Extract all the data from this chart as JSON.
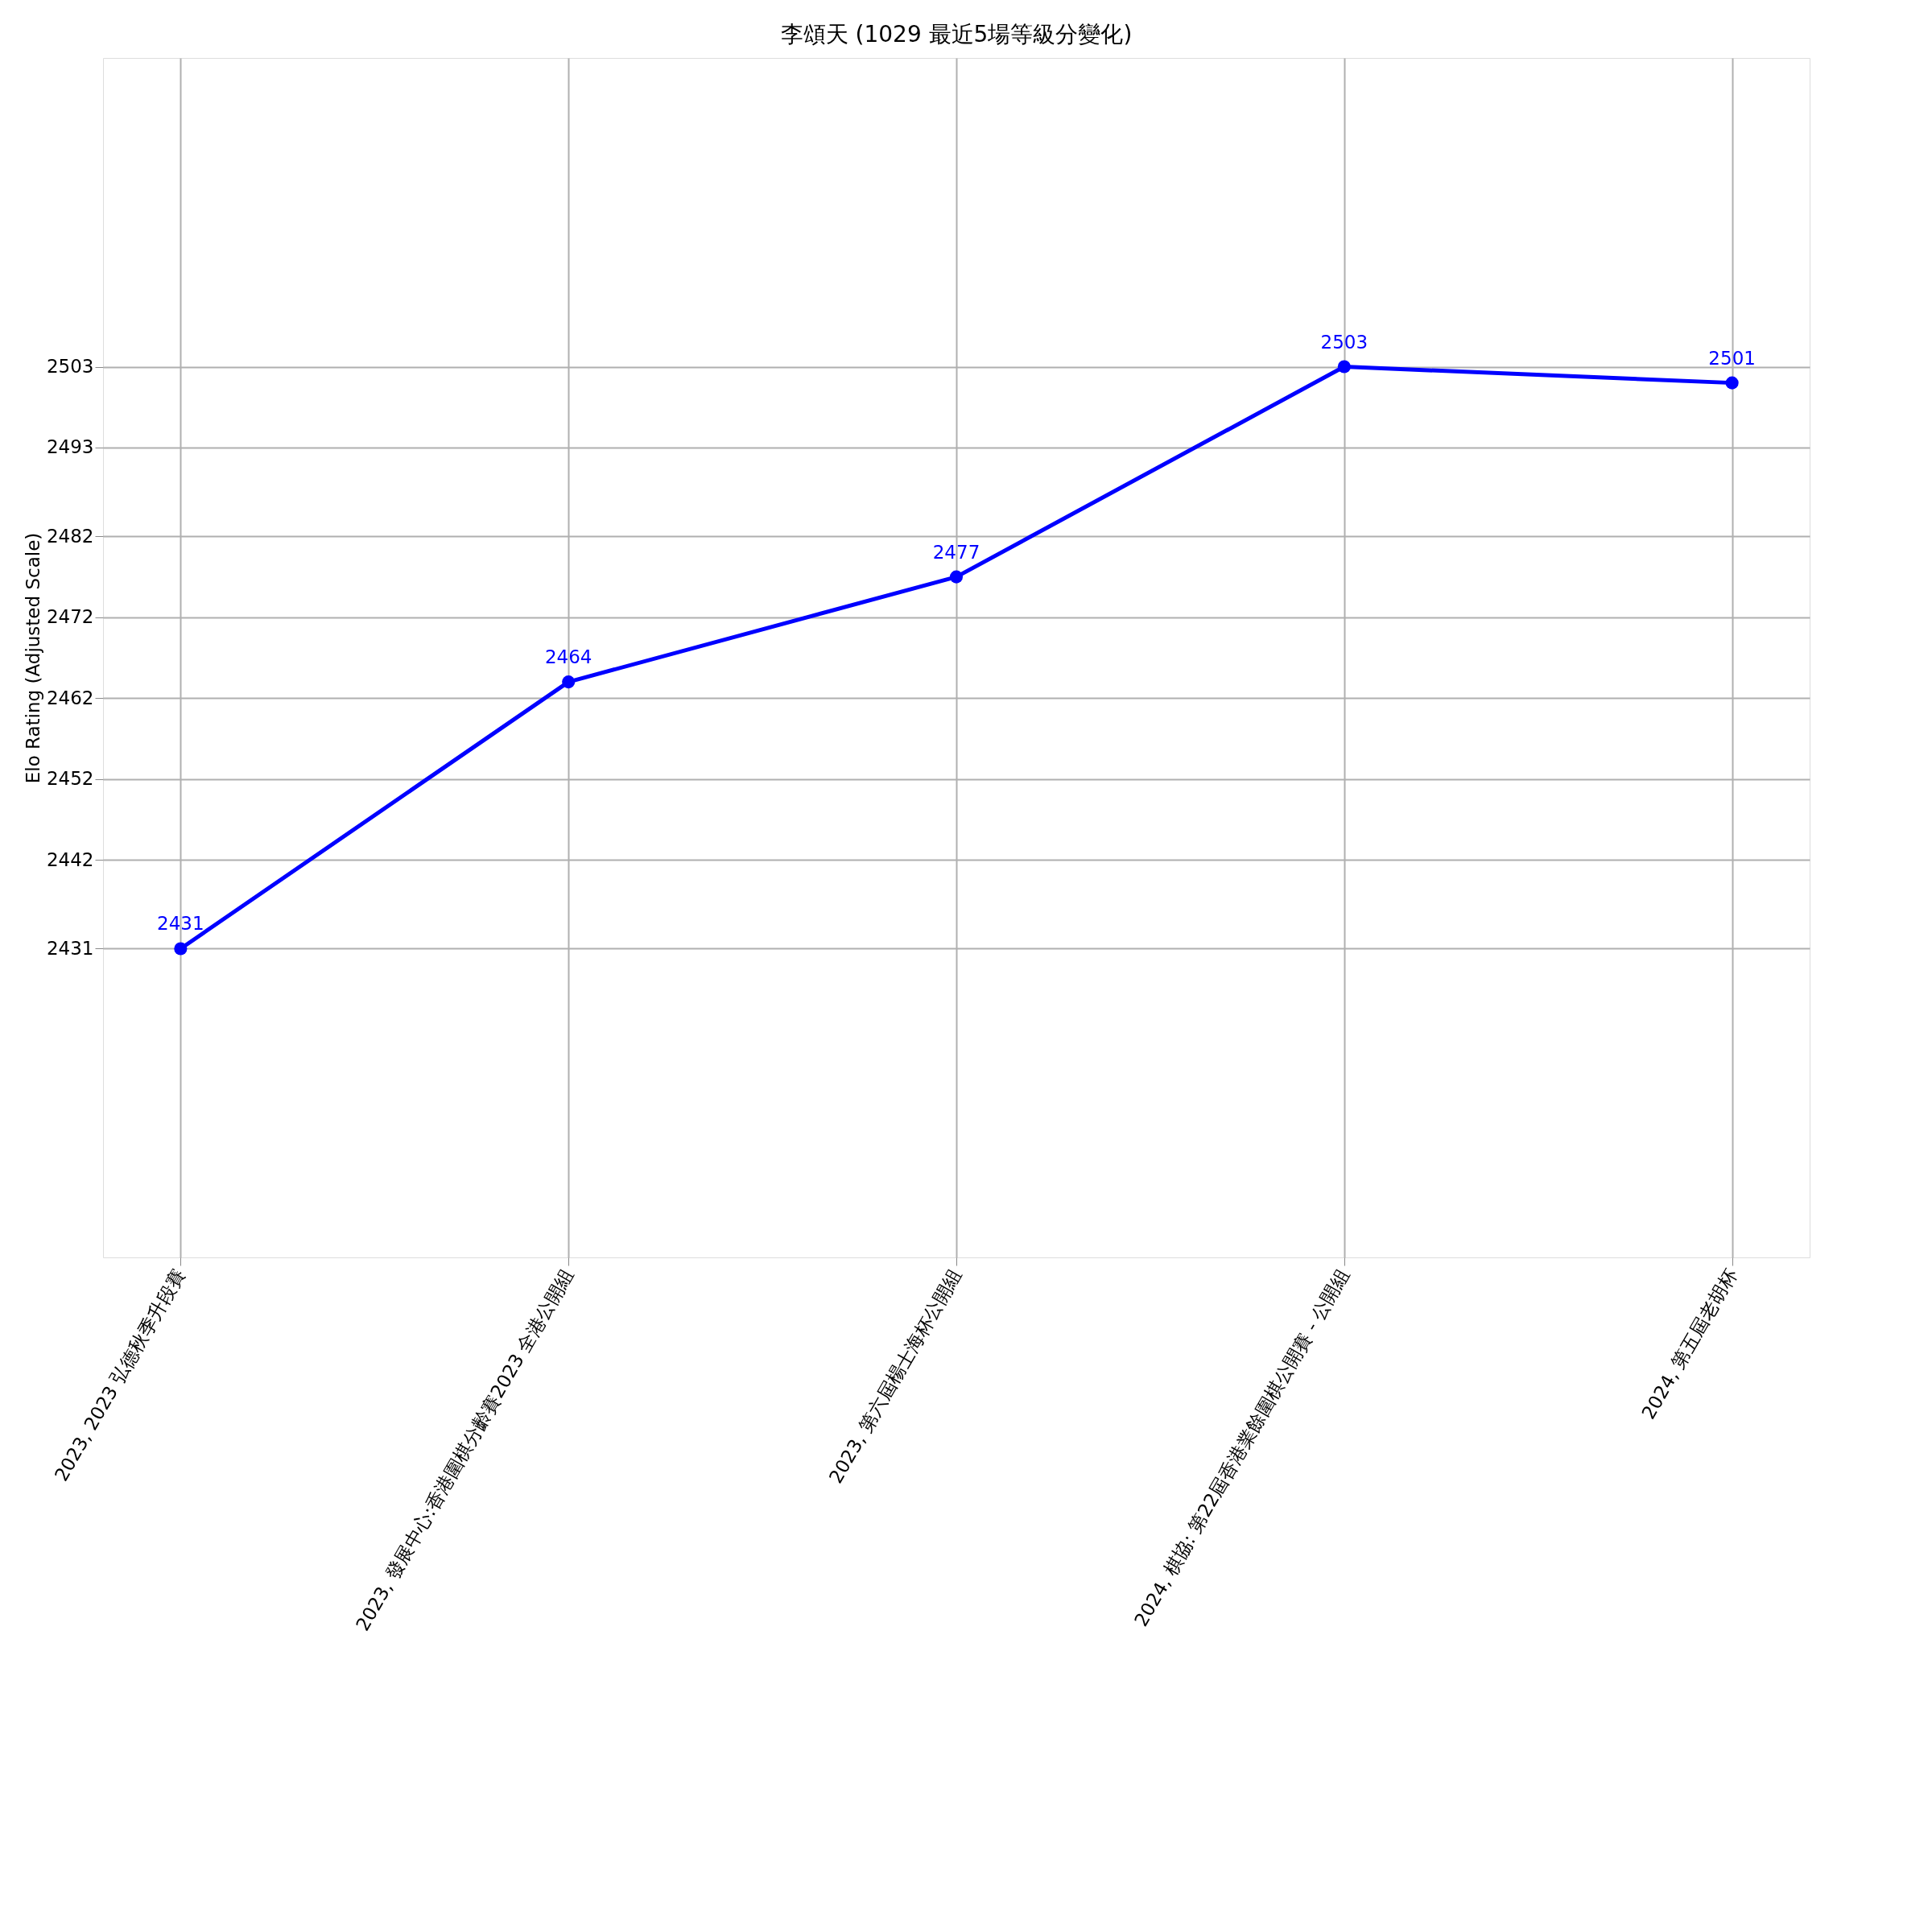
{
  "chart_data": {
    "type": "line",
    "title": "李頌天 (1029 最近5場等級分變化)",
    "ylabel": "Elo Rating (Adjusted Scale)",
    "categories": [
      "2023, 2023 弘德秋季升段賽",
      "2023, 發展中心:香港圍棋分齡賽2023 全港公開組",
      "2023, 第六屆楊士海杯公開組",
      "2024, 棋協: 第22屆香港業餘圍棋公開賽 - 公開組",
      "2024, 第五屆老胡杯"
    ],
    "series": [
      {
        "color": "#0000ff",
        "values": [
          2431,
          2464,
          2477,
          2503,
          2501
        ]
      }
    ],
    "ylim": [
      2392.8,
      2541.2
    ],
    "yticks": [
      2431,
      2442,
      2452,
      2462,
      2472,
      2482,
      2493,
      2503
    ],
    "data_labels": true,
    "grid": true,
    "marker": "circle",
    "line_style": "solid"
  }
}
